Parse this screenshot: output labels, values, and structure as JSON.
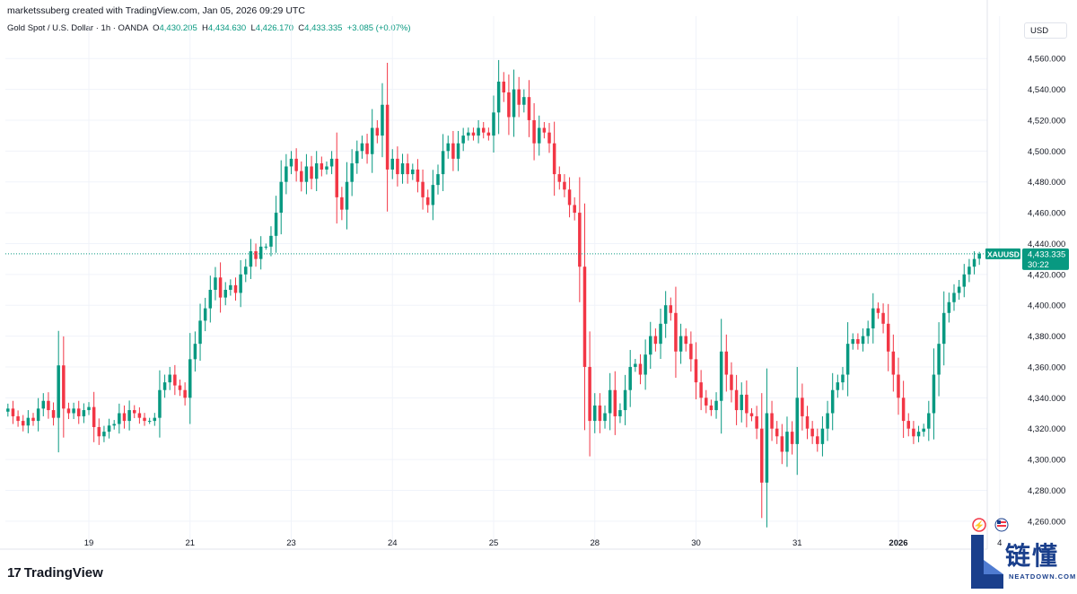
{
  "credit": "marketssuberg created with TradingView.com, Jan 05, 2026 09:29 UTC",
  "legend": {
    "symbol": "Gold Spot / U.S. Dollar · 1h · OANDA",
    "o_label": "O",
    "o_value": "4,430.205",
    "h_label": "H",
    "h_value": "4,434.630",
    "l_label": "L",
    "l_value": "4,426.170",
    "c_label": "C",
    "c_value": "4,433.335",
    "change": "+3.085 (+0.07%)"
  },
  "currency": "USD",
  "price_tag": {
    "symbol": "XAUUSD",
    "price": "4,433.335",
    "countdown": "30:22"
  },
  "brand": {
    "name": "TradingView",
    "mark": "17"
  },
  "watermark": {
    "cn": "链懂",
    "en": "NEATDOWN.COM"
  },
  "colors": {
    "up": "#089981",
    "down": "#f23645",
    "grid": "#f0f3fa",
    "text": "#131722",
    "tag": "#089981"
  },
  "chart_data": {
    "type": "candlestick",
    "ylim": [
      4250,
      4570
    ],
    "y_ticks": [
      "4,260.000",
      "4,280.000",
      "4,300.000",
      "4,320.000",
      "4,340.000",
      "4,360.000",
      "4,380.000",
      "4,400.000",
      "4,420.000",
      "4,440.000",
      "4,460.000",
      "4,480.000",
      "4,500.000",
      "4,520.000",
      "4,540.000",
      "4,560.000"
    ],
    "y_tick_values": [
      4260,
      4280,
      4300,
      4320,
      4340,
      4360,
      4380,
      4400,
      4420,
      4440,
      4460,
      4480,
      4500,
      4520,
      4540,
      4560
    ],
    "x_ticks": [
      "19",
      "21",
      "23",
      "24",
      "25",
      "28",
      "30",
      "31",
      "2026",
      "4"
    ],
    "x_tick_bar_index": [
      16,
      36,
      56,
      76,
      96,
      116,
      136,
      156,
      176,
      196
    ],
    "last_price": 4433.335,
    "last_open": 4430.205,
    "last_high": 4434.63,
    "last_low": 4426.17,
    "closes": [
      4333,
      4328,
      4325,
      4322,
      4327,
      4325,
      4333,
      4338,
      4332,
      4327,
      4361,
      4333,
      4330,
      4333,
      4328,
      4332,
      4334,
      4321,
      4315,
      4318,
      4322,
      4323,
      4330,
      4325,
      4332,
      4330,
      4327,
      4325,
      4325,
      4327,
      4345,
      4350,
      4355,
      4348,
      4345,
      4340,
      4365,
      4375,
      4390,
      4398,
      4410,
      4418,
      4405,
      4410,
      4413,
      4408,
      4420,
      4425,
      4435,
      4430,
      4438,
      4438,
      4445,
      4460,
      4480,
      4490,
      4495,
      4487,
      4480,
      4490,
      4482,
      4492,
      4488,
      4490,
      4495,
      4470,
      4462,
      4480,
      4492,
      4500,
      4505,
      4498,
      4515,
      4510,
      4530,
      4488,
      4495,
      4485,
      4492,
      4485,
      4488,
      4480,
      4470,
      4465,
      4478,
      4485,
      4500,
      4505,
      4495,
      4505,
      4510,
      4512,
      4510,
      4515,
      4512,
      4510,
      4525,
      4545,
      4538,
      4522,
      4540,
      4530,
      4535,
      4520,
      4505,
      4515,
      4512,
      4505,
      4485,
      4480,
      4475,
      4465,
      4460,
      4425,
      4360,
      4325,
      4335,
      4325,
      4330,
      4345,
      4328,
      4332,
      4345,
      4360,
      4362,
      4355,
      4368,
      4380,
      4375,
      4388,
      4400,
      4395,
      4370,
      4380,
      4375,
      4365,
      4350,
      4340,
      4335,
      4332,
      4338,
      4370,
      4355,
      4345,
      4332,
      4342,
      4330,
      4328,
      4320,
      4285,
      4330,
      4320,
      4315,
      4305,
      4318,
      4310,
      4340,
      4328,
      4320,
      4315,
      4310,
      4320,
      4330,
      4345,
      4350,
      4355,
      4375,
      4378,
      4375,
      4380,
      4385,
      4398,
      4395,
      4388,
      4370,
      4355,
      4340,
      4325,
      4320,
      4315,
      4318,
      4320,
      4330,
      4355,
      4375,
      4395,
      4402,
      4408,
      4412,
      4420,
      4425,
      4430,
      4433.335
    ]
  }
}
